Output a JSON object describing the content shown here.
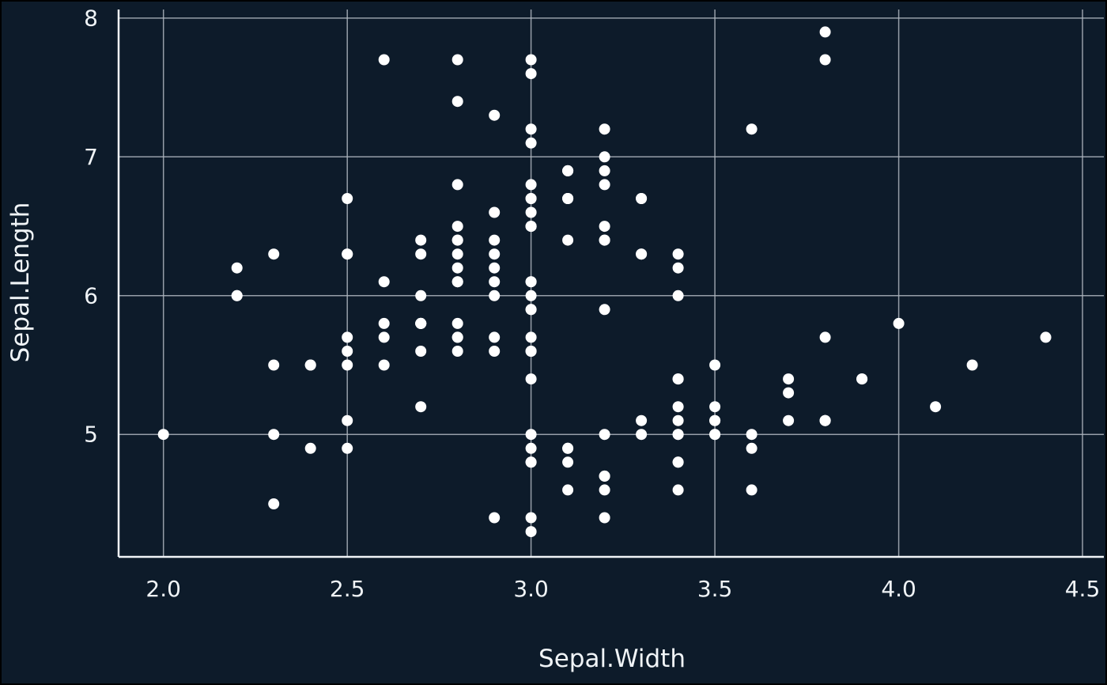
{
  "chart_data": {
    "type": "scatter",
    "title": "",
    "xlabel": "Sepal.Width",
    "ylabel": "Sepal.Length",
    "x_ticks": [
      2.0,
      2.5,
      3.0,
      3.5,
      4.0,
      4.5
    ],
    "x_tick_labels": [
      "2.0",
      "2.5",
      "3.0",
      "3.5",
      "4.0",
      "4.5"
    ],
    "y_ticks": [
      5,
      6,
      7,
      8
    ],
    "y_tick_labels": [
      "5",
      "6",
      "7",
      "8"
    ],
    "xlim": [
      1.878,
      4.558
    ],
    "ylim": [
      4.118,
      8.062
    ],
    "grid": true,
    "legend": false,
    "point_color": "#ffffff",
    "background_color": "#0d1b2a",
    "grid_color": "#aeb6bf",
    "axis_color": "#f0f4f7",
    "points": [
      [
        3.5,
        5.1
      ],
      [
        3.0,
        4.9
      ],
      [
        3.2,
        4.7
      ],
      [
        3.1,
        4.6
      ],
      [
        3.6,
        5.0
      ],
      [
        3.9,
        5.4
      ],
      [
        3.4,
        4.6
      ],
      [
        3.4,
        5.0
      ],
      [
        2.9,
        4.4
      ],
      [
        3.1,
        4.9
      ],
      [
        3.7,
        5.4
      ],
      [
        3.4,
        4.8
      ],
      [
        3.0,
        4.8
      ],
      [
        3.0,
        4.3
      ],
      [
        4.0,
        5.8
      ],
      [
        4.4,
        5.7
      ],
      [
        3.9,
        5.4
      ],
      [
        3.5,
        5.1
      ],
      [
        3.8,
        5.7
      ],
      [
        3.8,
        5.1
      ],
      [
        3.4,
        5.4
      ],
      [
        3.7,
        5.1
      ],
      [
        3.6,
        4.6
      ],
      [
        3.3,
        5.1
      ],
      [
        3.4,
        4.8
      ],
      [
        3.0,
        5.0
      ],
      [
        3.4,
        5.0
      ],
      [
        3.5,
        5.2
      ],
      [
        3.4,
        5.2
      ],
      [
        3.2,
        4.7
      ],
      [
        3.1,
        4.8
      ],
      [
        3.4,
        5.4
      ],
      [
        4.1,
        5.2
      ],
      [
        4.2,
        5.5
      ],
      [
        3.1,
        4.9
      ],
      [
        3.2,
        5.0
      ],
      [
        3.5,
        5.5
      ],
      [
        3.6,
        4.9
      ],
      [
        3.0,
        4.4
      ],
      [
        3.4,
        5.1
      ],
      [
        3.5,
        5.0
      ],
      [
        2.3,
        4.5
      ],
      [
        3.2,
        4.4
      ],
      [
        3.5,
        5.0
      ],
      [
        3.8,
        5.1
      ],
      [
        3.0,
        4.8
      ],
      [
        3.8,
        5.1
      ],
      [
        3.2,
        4.6
      ],
      [
        3.7,
        5.3
      ],
      [
        3.3,
        5.0
      ],
      [
        3.2,
        7.0
      ],
      [
        3.2,
        6.4
      ],
      [
        3.1,
        6.9
      ],
      [
        2.3,
        5.5
      ],
      [
        2.8,
        6.5
      ],
      [
        2.8,
        5.7
      ],
      [
        3.3,
        6.3
      ],
      [
        2.4,
        4.9
      ],
      [
        2.9,
        6.6
      ],
      [
        2.7,
        5.2
      ],
      [
        2.0,
        5.0
      ],
      [
        3.0,
        5.9
      ],
      [
        2.2,
        6.0
      ],
      [
        2.9,
        6.1
      ],
      [
        2.9,
        5.6
      ],
      [
        3.1,
        6.7
      ],
      [
        3.0,
        5.6
      ],
      [
        2.7,
        5.8
      ],
      [
        2.2,
        6.2
      ],
      [
        2.5,
        5.6
      ],
      [
        3.2,
        5.9
      ],
      [
        2.8,
        6.1
      ],
      [
        2.5,
        6.3
      ],
      [
        2.8,
        6.1
      ],
      [
        2.9,
        6.4
      ],
      [
        3.0,
        6.6
      ],
      [
        2.8,
        6.8
      ],
      [
        3.0,
        6.7
      ],
      [
        2.9,
        6.0
      ],
      [
        2.6,
        5.7
      ],
      [
        2.4,
        5.5
      ],
      [
        2.4,
        5.5
      ],
      [
        2.7,
        5.8
      ],
      [
        2.7,
        6.0
      ],
      [
        3.0,
        5.4
      ],
      [
        3.4,
        6.0
      ],
      [
        3.1,
        6.7
      ],
      [
        2.3,
        6.3
      ],
      [
        3.0,
        5.6
      ],
      [
        2.5,
        5.5
      ],
      [
        2.6,
        5.5
      ],
      [
        3.0,
        6.1
      ],
      [
        2.6,
        5.8
      ],
      [
        2.3,
        5.0
      ],
      [
        2.7,
        5.6
      ],
      [
        3.0,
        5.7
      ],
      [
        2.9,
        5.7
      ],
      [
        2.9,
        6.2
      ],
      [
        2.5,
        5.1
      ],
      [
        2.8,
        5.7
      ],
      [
        3.3,
        6.3
      ],
      [
        2.7,
        5.8
      ],
      [
        3.0,
        7.1
      ],
      [
        2.9,
        6.3
      ],
      [
        3.0,
        6.5
      ],
      [
        3.0,
        7.6
      ],
      [
        2.5,
        4.9
      ],
      [
        2.9,
        7.3
      ],
      [
        2.5,
        6.7
      ],
      [
        3.6,
        7.2
      ],
      [
        3.2,
        6.5
      ],
      [
        2.7,
        6.4
      ],
      [
        3.0,
        6.8
      ],
      [
        2.5,
        5.7
      ],
      [
        2.8,
        5.8
      ],
      [
        3.2,
        6.4
      ],
      [
        3.0,
        6.5
      ],
      [
        3.8,
        7.7
      ],
      [
        2.6,
        7.7
      ],
      [
        2.2,
        6.0
      ],
      [
        3.2,
        6.9
      ],
      [
        2.8,
        5.6
      ],
      [
        2.8,
        7.7
      ],
      [
        2.7,
        6.3
      ],
      [
        3.3,
        6.7
      ],
      [
        3.2,
        7.2
      ],
      [
        2.8,
        6.2
      ],
      [
        3.0,
        6.1
      ],
      [
        2.8,
        6.4
      ],
      [
        3.0,
        7.2
      ],
      [
        2.8,
        7.4
      ],
      [
        3.8,
        7.9
      ],
      [
        2.8,
        6.4
      ],
      [
        2.8,
        6.3
      ],
      [
        2.6,
        6.1
      ],
      [
        3.0,
        7.7
      ],
      [
        3.4,
        6.3
      ],
      [
        3.1,
        6.4
      ],
      [
        3.0,
        6.0
      ],
      [
        3.1,
        6.9
      ],
      [
        3.1,
        6.7
      ],
      [
        3.1,
        6.9
      ],
      [
        2.7,
        5.8
      ],
      [
        3.2,
        6.8
      ],
      [
        3.3,
        6.7
      ],
      [
        3.0,
        6.7
      ],
      [
        2.5,
        6.3
      ],
      [
        3.0,
        6.5
      ],
      [
        3.4,
        6.2
      ],
      [
        3.0,
        5.9
      ]
    ]
  }
}
